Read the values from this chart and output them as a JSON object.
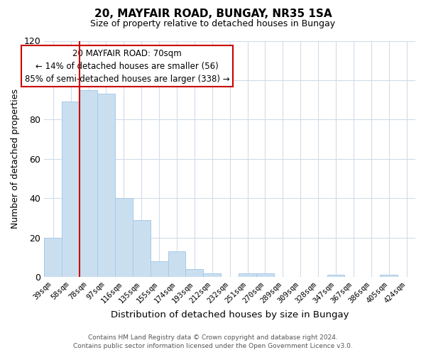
{
  "title": "20, MAYFAIR ROAD, BUNGAY, NR35 1SA",
  "subtitle": "Size of property relative to detached houses in Bungay",
  "xlabel": "Distribution of detached houses by size in Bungay",
  "ylabel": "Number of detached properties",
  "categories": [
    "39sqm",
    "58sqm",
    "78sqm",
    "97sqm",
    "116sqm",
    "135sqm",
    "155sqm",
    "174sqm",
    "193sqm",
    "212sqm",
    "232sqm",
    "251sqm",
    "270sqm",
    "289sqm",
    "309sqm",
    "328sqm",
    "347sqm",
    "367sqm",
    "386sqm",
    "405sqm",
    "424sqm"
  ],
  "values": [
    20,
    89,
    95,
    93,
    40,
    29,
    8,
    13,
    4,
    2,
    0,
    2,
    2,
    0,
    0,
    0,
    1,
    0,
    0,
    1,
    0
  ],
  "bar_color": "#c9dff0",
  "bar_edge_color": "#a8c8e8",
  "vline_x": 2,
  "vline_color": "#cc0000",
  "ylim": [
    0,
    120
  ],
  "yticks": [
    0,
    20,
    40,
    60,
    80,
    100,
    120
  ],
  "annotation_title": "20 MAYFAIR ROAD: 70sqm",
  "annotation_line1": "← 14% of detached houses are smaller (56)",
  "annotation_line2": "85% of semi-detached houses are larger (338) →",
  "annotation_box_color": "#ffffff",
  "annotation_box_edge": "#cc0000",
  "footer_line1": "Contains HM Land Registry data © Crown copyright and database right 2024.",
  "footer_line2": "Contains public sector information licensed under the Open Government Licence v3.0.",
  "background_color": "#ffffff",
  "grid_color": "#d0dce8"
}
